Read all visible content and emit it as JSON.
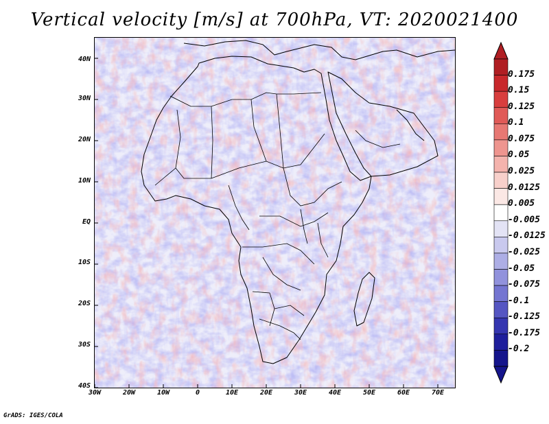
{
  "title": "Vertical velocity [m/s] at 700hPa, VT: 2020021400",
  "map": {
    "projection": "lat-lon",
    "lon_range": [
      -30,
      75
    ],
    "lat_range": [
      -40,
      45
    ],
    "lat_labels": [
      "40N",
      "30N",
      "20N",
      "10N",
      "EQ",
      "10S",
      "20S",
      "30S",
      "40S"
    ],
    "lon_labels": [
      "30W",
      "20W",
      "10W",
      "0",
      "10E",
      "20E",
      "30E",
      "40E",
      "50E",
      "60E",
      "70E"
    ]
  },
  "colorbar": {
    "labels": [
      "0.175",
      "0.15",
      "0.125",
      "0.1",
      "0.075",
      "0.05",
      "0.025",
      "0.0125",
      "0.005",
      "-0.005",
      "-0.0125",
      "-0.025",
      "-0.05",
      "-0.075",
      "-0.1",
      "-0.125",
      "-0.175",
      "-0.2"
    ],
    "colors": [
      "#b01e23",
      "#c8282c",
      "#d83e3e",
      "#e05a57",
      "#e77873",
      "#ee958f",
      "#f4b3ad",
      "#f8d0cb",
      "#fbe8e5",
      "#ffffff",
      "#e3e3f5",
      "#c9c9ee",
      "#adaee5",
      "#9192dc",
      "#7475d1",
      "#5556c2",
      "#3536b0",
      "#1f1f9c",
      "#15158c"
    ]
  },
  "credit": "GrADS: IGES/COLA"
}
